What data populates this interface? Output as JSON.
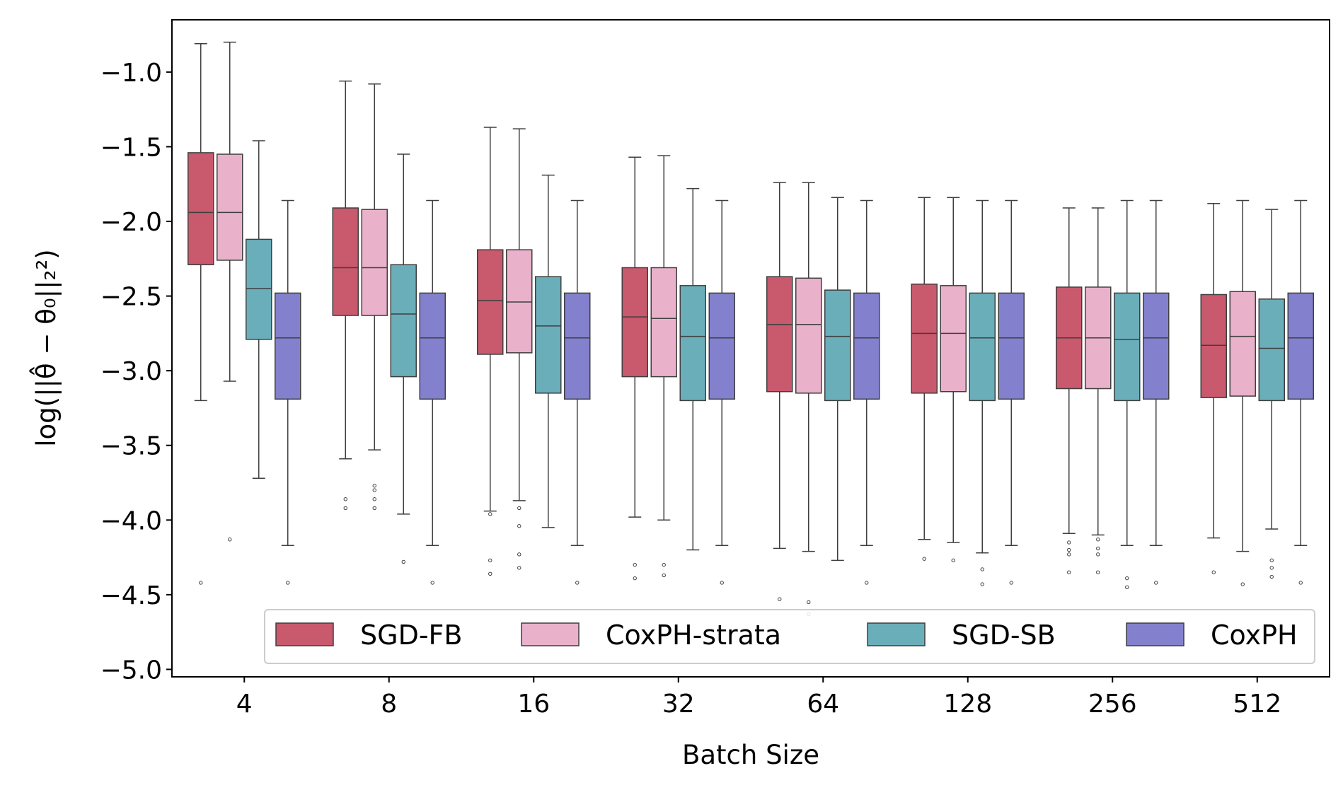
{
  "chart_data": {
    "type": "boxplot",
    "title": "",
    "xlabel": "Batch Size",
    "ylabel": "log(||θ̂ − θ₀||₂²)",
    "ylim": [
      -5.05,
      -0.65
    ],
    "yticks": [
      -1.0,
      -1.5,
      -2.0,
      -2.5,
      -3.0,
      -3.5,
      -4.0,
      -4.5,
      -5.0
    ],
    "ytick_labels": [
      "−1.0",
      "−1.5",
      "−2.0",
      "−2.5",
      "−3.0",
      "−3.5",
      "−4.0",
      "−4.5",
      "−5.0"
    ],
    "categories": [
      "4",
      "8",
      "16",
      "32",
      "64",
      "128",
      "256",
      "512"
    ],
    "legend_position": "lower-right",
    "series": [
      {
        "name": "SGD-FB",
        "color": "#c9596d",
        "boxes": [
          {
            "q1": -2.29,
            "median": -1.94,
            "q3": -1.54,
            "whisker_low": -3.2,
            "whisker_high": -0.81,
            "outliers": [
              -4.42
            ]
          },
          {
            "q1": -2.63,
            "median": -2.31,
            "q3": -1.91,
            "whisker_low": -3.59,
            "whisker_high": -1.06,
            "outliers": [
              -3.86,
              -3.92
            ]
          },
          {
            "q1": -2.89,
            "median": -2.53,
            "q3": -2.19,
            "whisker_low": -3.94,
            "whisker_high": -1.37,
            "outliers": [
              -3.96,
              -4.27,
              -4.36
            ]
          },
          {
            "q1": -3.04,
            "median": -2.64,
            "q3": -2.31,
            "whisker_low": -3.98,
            "whisker_high": -1.57,
            "outliers": [
              -4.3,
              -4.39
            ]
          },
          {
            "q1": -3.14,
            "median": -2.69,
            "q3": -2.37,
            "whisker_low": -4.19,
            "whisker_high": -1.74,
            "outliers": [
              -4.53
            ]
          },
          {
            "q1": -3.15,
            "median": -2.75,
            "q3": -2.42,
            "whisker_low": -4.13,
            "whisker_high": -1.84,
            "outliers": [
              -4.26
            ]
          },
          {
            "q1": -3.12,
            "median": -2.78,
            "q3": -2.44,
            "whisker_low": -4.09,
            "whisker_high": -1.91,
            "outliers": [
              -4.15,
              -4.2,
              -4.23,
              -4.35
            ]
          },
          {
            "q1": -3.18,
            "median": -2.83,
            "q3": -2.49,
            "whisker_low": -4.12,
            "whisker_high": -1.88,
            "outliers": [
              -4.35
            ]
          }
        ]
      },
      {
        "name": "CoxPH-strata",
        "color": "#e9b2ca",
        "boxes": [
          {
            "q1": -2.26,
            "median": -1.94,
            "q3": -1.55,
            "whisker_low": -3.07,
            "whisker_high": -0.8,
            "outliers": [
              -4.13
            ]
          },
          {
            "q1": -2.63,
            "median": -2.31,
            "q3": -1.92,
            "whisker_low": -3.53,
            "whisker_high": -1.08,
            "outliers": [
              -3.77,
              -3.8,
              -3.86,
              -3.92
            ]
          },
          {
            "q1": -2.88,
            "median": -2.54,
            "q3": -2.19,
            "whisker_low": -3.87,
            "whisker_high": -1.38,
            "outliers": [
              -3.92,
              -4.04,
              -4.23,
              -4.32
            ]
          },
          {
            "q1": -3.04,
            "median": -2.65,
            "q3": -2.31,
            "whisker_low": -4.0,
            "whisker_high": -1.56,
            "outliers": [
              -4.3,
              -4.37
            ]
          },
          {
            "q1": -3.15,
            "median": -2.69,
            "q3": -2.38,
            "whisker_low": -4.21,
            "whisker_high": -1.74,
            "outliers": [
              -4.55,
              -4.63
            ]
          },
          {
            "q1": -3.14,
            "median": -2.75,
            "q3": -2.43,
            "whisker_low": -4.15,
            "whisker_high": -1.84,
            "outliers": [
              -4.27
            ]
          },
          {
            "q1": -3.12,
            "median": -2.78,
            "q3": -2.44,
            "whisker_low": -4.1,
            "whisker_high": -1.91,
            "outliers": [
              -4.13,
              -4.19,
              -4.23,
              -4.35
            ]
          },
          {
            "q1": -3.17,
            "median": -2.77,
            "q3": -2.47,
            "whisker_low": -4.21,
            "whisker_high": -1.86,
            "outliers": [
              -4.43
            ]
          }
        ]
      },
      {
        "name": "SGD-SB",
        "color": "#6aaeba",
        "boxes": [
          {
            "q1": -2.79,
            "median": -2.45,
            "q3": -2.12,
            "whisker_low": -3.72,
            "whisker_high": -1.46,
            "outliers": []
          },
          {
            "q1": -3.04,
            "median": -2.62,
            "q3": -2.29,
            "whisker_low": -3.96,
            "whisker_high": -1.55,
            "outliers": [
              -4.28
            ]
          },
          {
            "q1": -3.15,
            "median": -2.7,
            "q3": -2.37,
            "whisker_low": -4.05,
            "whisker_high": -1.69,
            "outliers": []
          },
          {
            "q1": -3.2,
            "median": -2.77,
            "q3": -2.43,
            "whisker_low": -4.2,
            "whisker_high": -1.78,
            "outliers": []
          },
          {
            "q1": -3.2,
            "median": -2.77,
            "q3": -2.46,
            "whisker_low": -4.27,
            "whisker_high": -1.84,
            "outliers": []
          },
          {
            "q1": -3.2,
            "median": -2.78,
            "q3": -2.48,
            "whisker_low": -4.22,
            "whisker_high": -1.86,
            "outliers": [
              -4.33,
              -4.43
            ]
          },
          {
            "q1": -3.2,
            "median": -2.79,
            "q3": -2.48,
            "whisker_low": -4.17,
            "whisker_high": -1.86,
            "outliers": [
              -4.39,
              -4.45
            ]
          },
          {
            "q1": -3.2,
            "median": -2.85,
            "q3": -2.52,
            "whisker_low": -4.06,
            "whisker_high": -1.92,
            "outliers": [
              -4.27,
              -4.32,
              -4.38
            ]
          }
        ]
      },
      {
        "name": "CoxPH",
        "color": "#8381cd",
        "boxes": [
          {
            "q1": -3.19,
            "median": -2.78,
            "q3": -2.48,
            "whisker_low": -4.17,
            "whisker_high": -1.86,
            "outliers": [
              -4.42
            ]
          },
          {
            "q1": -3.19,
            "median": -2.78,
            "q3": -2.48,
            "whisker_low": -4.17,
            "whisker_high": -1.86,
            "outliers": [
              -4.42
            ]
          },
          {
            "q1": -3.19,
            "median": -2.78,
            "q3": -2.48,
            "whisker_low": -4.17,
            "whisker_high": -1.86,
            "outliers": [
              -4.42
            ]
          },
          {
            "q1": -3.19,
            "median": -2.78,
            "q3": -2.48,
            "whisker_low": -4.17,
            "whisker_high": -1.86,
            "outliers": [
              -4.42
            ]
          },
          {
            "q1": -3.19,
            "median": -2.78,
            "q3": -2.48,
            "whisker_low": -4.17,
            "whisker_high": -1.86,
            "outliers": [
              -4.42
            ]
          },
          {
            "q1": -3.19,
            "median": -2.78,
            "q3": -2.48,
            "whisker_low": -4.17,
            "whisker_high": -1.86,
            "outliers": [
              -4.42
            ]
          },
          {
            "q1": -3.19,
            "median": -2.78,
            "q3": -2.48,
            "whisker_low": -4.17,
            "whisker_high": -1.86,
            "outliers": [
              -4.42
            ]
          },
          {
            "q1": -3.19,
            "median": -2.78,
            "q3": -2.48,
            "whisker_low": -4.17,
            "whisker_high": -1.86,
            "outliers": [
              -4.42
            ]
          }
        ]
      }
    ]
  }
}
